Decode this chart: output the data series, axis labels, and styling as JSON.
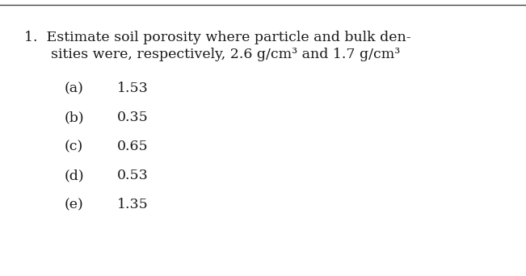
{
  "title_line1": "1.  Estimate soil porosity where particle and bulk den-",
  "title_line2": "      sities were, respectively, 2.6 g/cm³ and 1.7 g/cm³",
  "options": [
    {
      "label": "(a)",
      "value": "1.53"
    },
    {
      "label": "(b)",
      "value": "0.35"
    },
    {
      "label": "(c)",
      "value": "0.65"
    },
    {
      "label": "(d)",
      "value": "0.53"
    },
    {
      "label": "(e)",
      "value": "1.35"
    }
  ],
  "background_color": "#ffffff",
  "text_color": "#1a1a1a",
  "font_size_title": 12.5,
  "font_size_options": 12.5,
  "top_border_color": "#444444",
  "fig_width": 6.51,
  "fig_height": 3.42,
  "dpi": 100
}
